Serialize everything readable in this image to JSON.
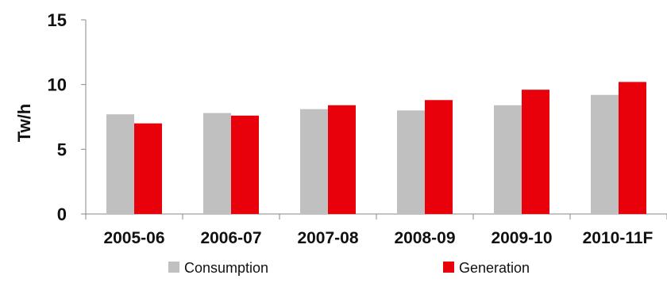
{
  "chart_data": {
    "type": "bar",
    "categories": [
      "2005-06",
      "2006-07",
      "2007-08",
      "2008-09",
      "2009-10",
      "2010-11F"
    ],
    "series": [
      {
        "name": "Consumption",
        "color": "#c0c0c0",
        "values": [
          7.7,
          7.8,
          8.1,
          8.0,
          8.4,
          9.2
        ]
      },
      {
        "name": "Generation",
        "color": "#e8000b",
        "values": [
          7.0,
          7.6,
          8.4,
          8.8,
          9.6,
          10.2
        ]
      }
    ],
    "ylabel": "Tw/h",
    "ylim": [
      0,
      15
    ],
    "yticks": [
      0,
      5,
      10,
      15
    ],
    "grid": false,
    "legend_position": "bottom"
  }
}
